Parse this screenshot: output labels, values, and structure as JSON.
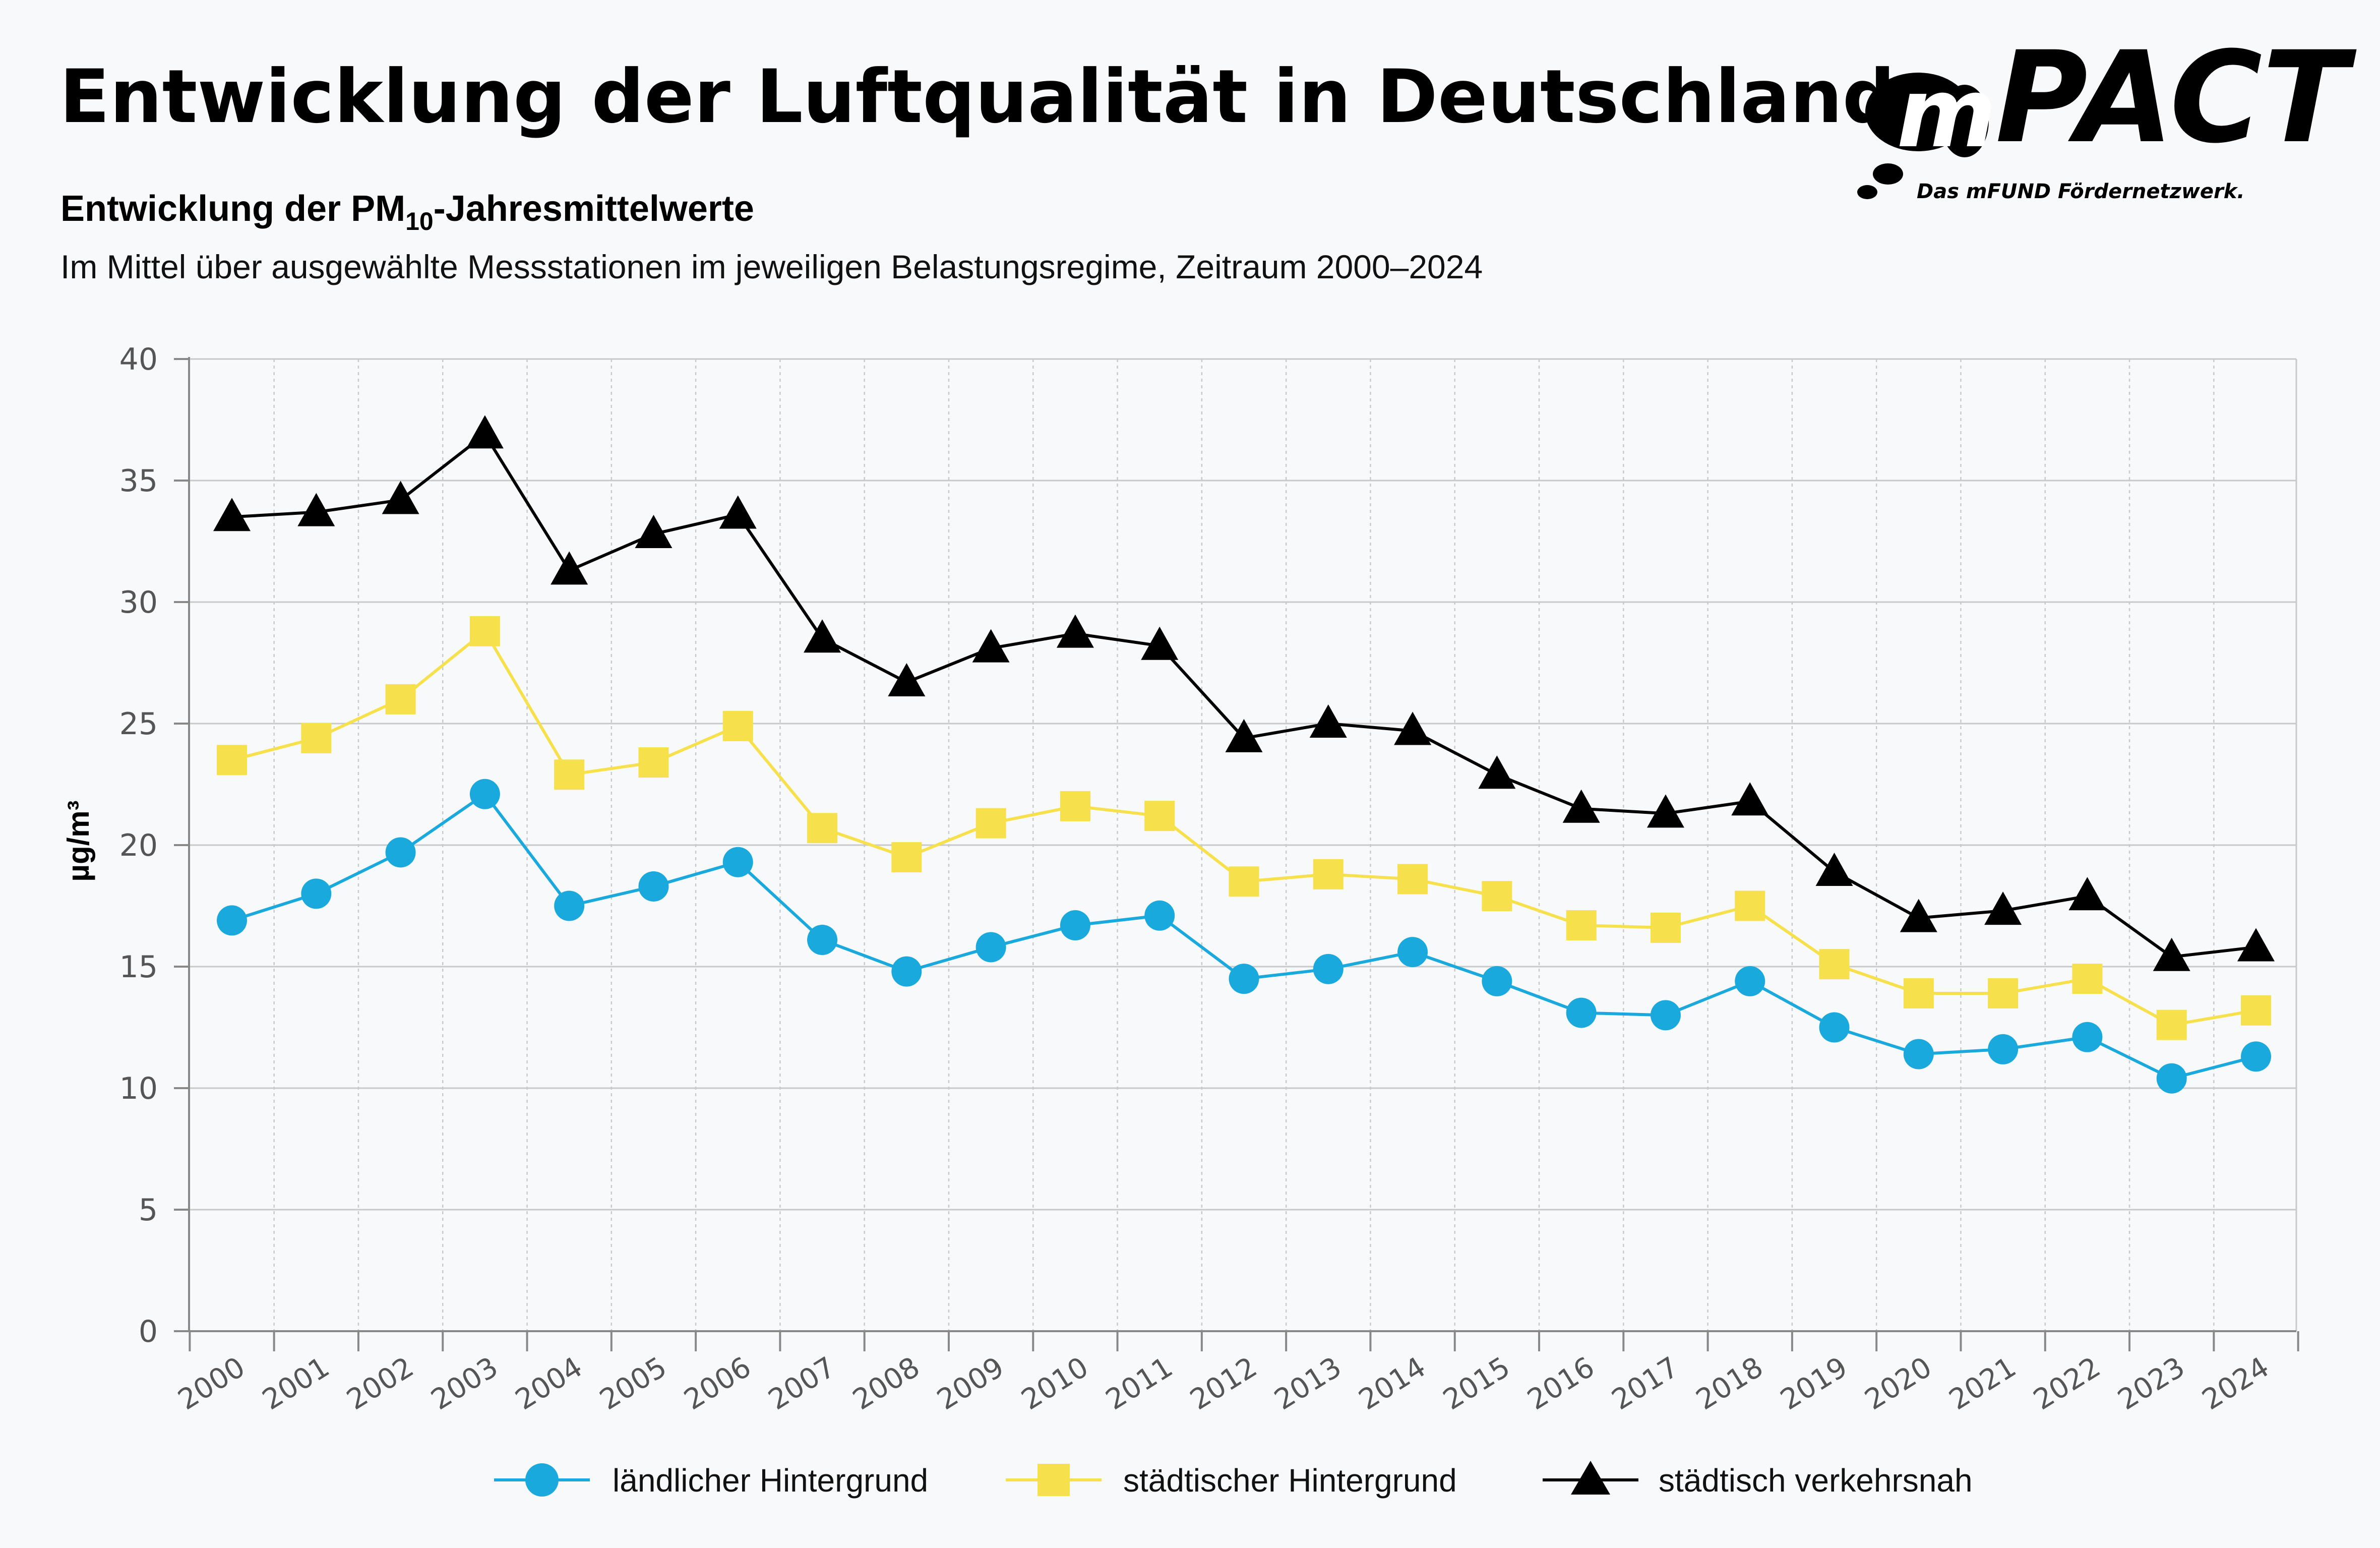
{
  "header": {
    "title": "Entwicklung der Luftqualität in Deutschland",
    "subtitle_prefix": "Entwicklung der PM",
    "subtitle_subscript": "10",
    "subtitle_suffix": "-Jahresmittelwerte",
    "description": "Im Mittel über ausgewählte Messstationen im jeweiligen Belastungsregime, Zeitraum 2000–2024"
  },
  "logo": {
    "mark_letter": "m",
    "name": "PACT",
    "tagline": "Das mFUND Fördernetzwerk."
  },
  "colors": {
    "rural": "#1aa9dd",
    "urban": "#f6e04b",
    "traffic": "#000000",
    "grid": "#c9c9c9",
    "axis": "#888888"
  },
  "icons": {
    "rural": "circle-marker-icon",
    "urban": "square-marker-icon",
    "traffic": "triangle-marker-icon"
  },
  "chart_data": {
    "type": "line",
    "title": "Entwicklung der PM10-Jahresmittelwerte",
    "xlabel": "",
    "ylabel": "µg/m³",
    "ylim": [
      0,
      40
    ],
    "yticks": [
      0,
      5,
      10,
      15,
      20,
      25,
      30,
      35,
      40
    ],
    "grid": true,
    "legend_position": "bottom",
    "categories": [
      "2000",
      "2001",
      "2002",
      "2003",
      "2004",
      "2005",
      "2006",
      "2007",
      "2008",
      "2009",
      "2010",
      "2011",
      "2012",
      "2013",
      "2014",
      "2015",
      "2016",
      "2017",
      "2018",
      "2019",
      "2020",
      "2021",
      "2022",
      "2023",
      "2024"
    ],
    "series": [
      {
        "name": "ländlicher Hintergrund",
        "key": "rural",
        "marker": "circle",
        "values": [
          16.9,
          18.0,
          19.7,
          22.1,
          17.5,
          18.3,
          19.3,
          16.1,
          14.8,
          15.8,
          16.7,
          17.1,
          14.5,
          14.9,
          15.6,
          14.4,
          13.1,
          13.0,
          14.4,
          12.5,
          11.4,
          11.6,
          12.1,
          10.4,
          11.3
        ]
      },
      {
        "name": "städtischer Hintergrund",
        "key": "urban",
        "marker": "square",
        "values": [
          23.5,
          24.4,
          26.0,
          28.8,
          22.9,
          23.4,
          24.9,
          20.7,
          19.5,
          20.9,
          21.6,
          21.2,
          18.5,
          18.8,
          18.6,
          17.9,
          16.7,
          16.6,
          17.5,
          15.1,
          13.9,
          13.9,
          14.5,
          12.6,
          13.2
        ]
      },
      {
        "name": "städtisch verkehrsnah",
        "key": "traffic",
        "marker": "triangle",
        "values": [
          33.5,
          33.7,
          34.2,
          36.9,
          31.3,
          32.8,
          33.6,
          28.5,
          26.7,
          28.1,
          28.7,
          28.2,
          24.4,
          25.0,
          24.7,
          22.9,
          21.5,
          21.3,
          21.8,
          18.9,
          17.0,
          17.3,
          17.9,
          15.4,
          15.8
        ]
      }
    ]
  }
}
